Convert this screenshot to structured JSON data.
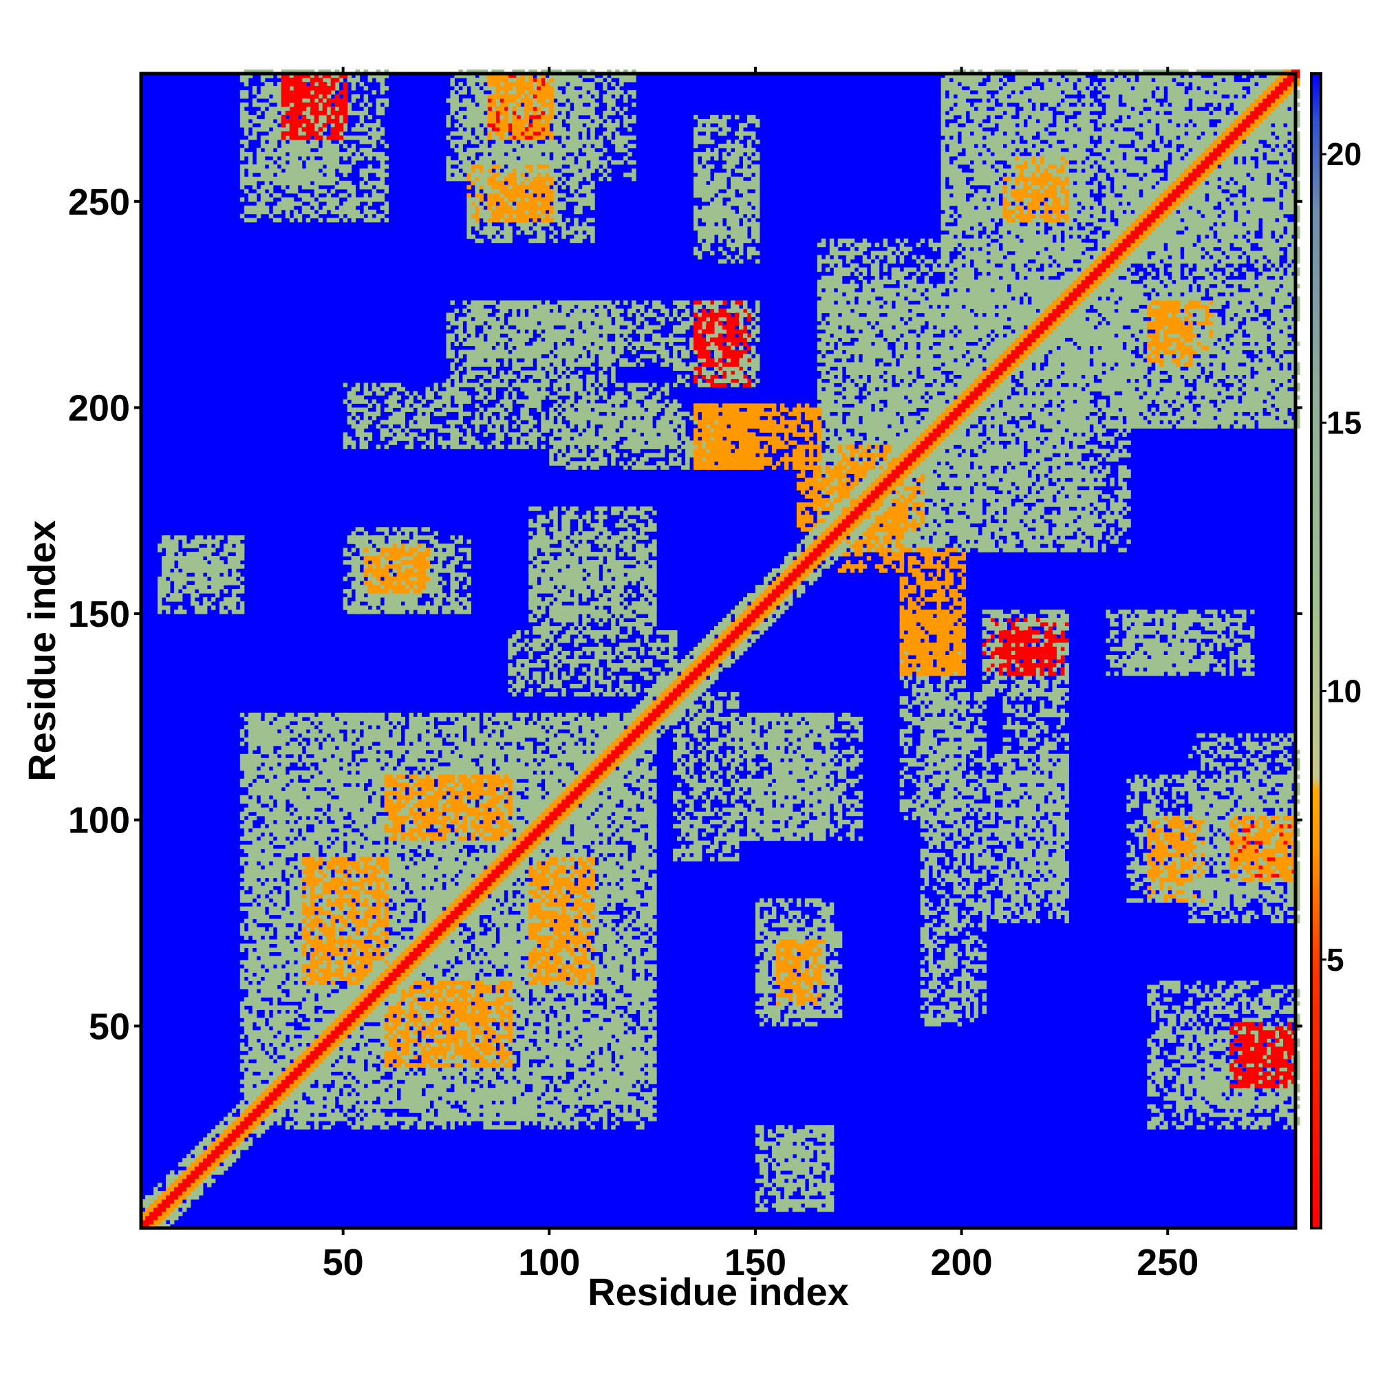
{
  "chart_data": {
    "type": "heatmap",
    "title": "",
    "xlabel": "Residue index",
    "ylabel": "Residue index",
    "xlim": [
      1,
      281
    ],
    "ylim": [
      1,
      281
    ],
    "x_ticks": [
      50,
      100,
      150,
      200,
      250
    ],
    "y_ticks": [
      50,
      100,
      150,
      200,
      250
    ],
    "colorbar": {
      "ticks": [
        5,
        10,
        15,
        20
      ],
      "range": [
        0,
        21.5
      ],
      "colors": {
        "close": "#ff0000",
        "mid": "#ff9900",
        "far": "#9fc08f",
        "background": "#0000ff"
      }
    },
    "diagonal": {
      "from": 1,
      "to": 281
    },
    "contact_regions": [
      {
        "x": [
          30,
          48
        ],
        "y": [
          252,
          281
        ],
        "level": "far"
      },
      {
        "x": [
          35,
          45
        ],
        "y": [
          268,
          280
        ],
        "level": "close"
      },
      {
        "x": [
          75,
          120
        ],
        "y": [
          255,
          281
        ],
        "level": "far"
      },
      {
        "x": [
          85,
          98
        ],
        "y": [
          265,
          280
        ],
        "level": "close"
      },
      {
        "x": [
          80,
          100
        ],
        "y": [
          245,
          258
        ],
        "level": "mid"
      },
      {
        "x": [
          75,
          115
        ],
        "y": [
          205,
          225
        ],
        "level": "far"
      },
      {
        "x": [
          100,
          140
        ],
        "y": [
          185,
          200
        ],
        "level": "far"
      },
      {
        "x": [
          135,
          148
        ],
        "y": [
          205,
          225
        ],
        "level": "close"
      },
      {
        "x": [
          135,
          150
        ],
        "y": [
          185,
          200
        ],
        "level": "mid"
      },
      {
        "x": [
          135,
          150
        ],
        "y": [
          235,
          270
        ],
        "level": "far"
      },
      {
        "x": [
          5,
          25
        ],
        "y": [
          150,
          168
        ],
        "level": "far"
      },
      {
        "x": [
          52,
          72
        ],
        "y": [
          150,
          170
        ],
        "level": "far"
      },
      {
        "x": [
          60,
          70
        ],
        "y": [
          155,
          166
        ],
        "level": "mid"
      },
      {
        "x": [
          95,
          125
        ],
        "y": [
          145,
          175
        ],
        "level": "far"
      },
      {
        "x": [
          27,
          125
        ],
        "y": [
          25,
          125
        ],
        "level": "far"
      },
      {
        "x": [
          40,
          60
        ],
        "y": [
          60,
          90
        ],
        "level": "mid"
      },
      {
        "x": [
          95,
          110
        ],
        "y": [
          60,
          90
        ],
        "level": "mid"
      },
      {
        "x": [
          130,
          145
        ],
        "y": [
          90,
          130
        ],
        "level": "far"
      },
      {
        "x": [
          148,
          168
        ],
        "y": [
          95,
          125
        ],
        "level": "far"
      },
      {
        "x": [
          150,
          168
        ],
        "y": [
          50,
          80
        ],
        "level": "far"
      },
      {
        "x": [
          155,
          165
        ],
        "y": [
          55,
          70
        ],
        "level": "mid"
      },
      {
        "x": [
          155,
          168
        ],
        "y": [
          5,
          25
        ],
        "level": "far"
      },
      {
        "x": [
          165,
          230
        ],
        "y": [
          165,
          240
        ],
        "level": "far"
      },
      {
        "x": [
          185,
          200
        ],
        "y": [
          135,
          165
        ],
        "level": "mid"
      },
      {
        "x": [
          170,
          185
        ],
        "y": [
          160,
          190
        ],
        "level": "mid"
      },
      {
        "x": [
          195,
          230
        ],
        "y": [
          220,
          280
        ],
        "level": "far"
      },
      {
        "x": [
          213,
          225
        ],
        "y": [
          245,
          260
        ],
        "level": "mid"
      },
      {
        "x": [
          205,
          225
        ],
        "y": [
          130,
          150
        ],
        "level": "far"
      },
      {
        "x": [
          210,
          222
        ],
        "y": [
          135,
          145
        ],
        "level": "close"
      },
      {
        "x": [
          240,
          255
        ],
        "y": [
          135,
          150
        ],
        "level": "far"
      },
      {
        "x": [
          210,
          225
        ],
        "y": [
          80,
          130
        ],
        "level": "far"
      },
      {
        "x": [
          240,
          281
        ],
        "y": [
          80,
          110
        ],
        "level": "far"
      },
      {
        "x": [
          245,
          255
        ],
        "y": [
          85,
          100
        ],
        "level": "mid"
      },
      {
        "x": [
          265,
          280
        ],
        "y": [
          85,
          100
        ],
        "level": "mid"
      },
      {
        "x": [
          245,
          281
        ],
        "y": [
          25,
          60
        ],
        "level": "far"
      },
      {
        "x": [
          265,
          280
        ],
        "y": [
          35,
          50
        ],
        "level": "close"
      },
      {
        "x": [
          235,
          281
        ],
        "y": [
          195,
          281
        ],
        "level": "far"
      },
      {
        "x": [
          245,
          255
        ],
        "y": [
          210,
          225
        ],
        "level": "mid"
      },
      {
        "x": [
          190,
          205
        ],
        "y": [
          50,
          130
        ],
        "level": "far"
      }
    ]
  }
}
